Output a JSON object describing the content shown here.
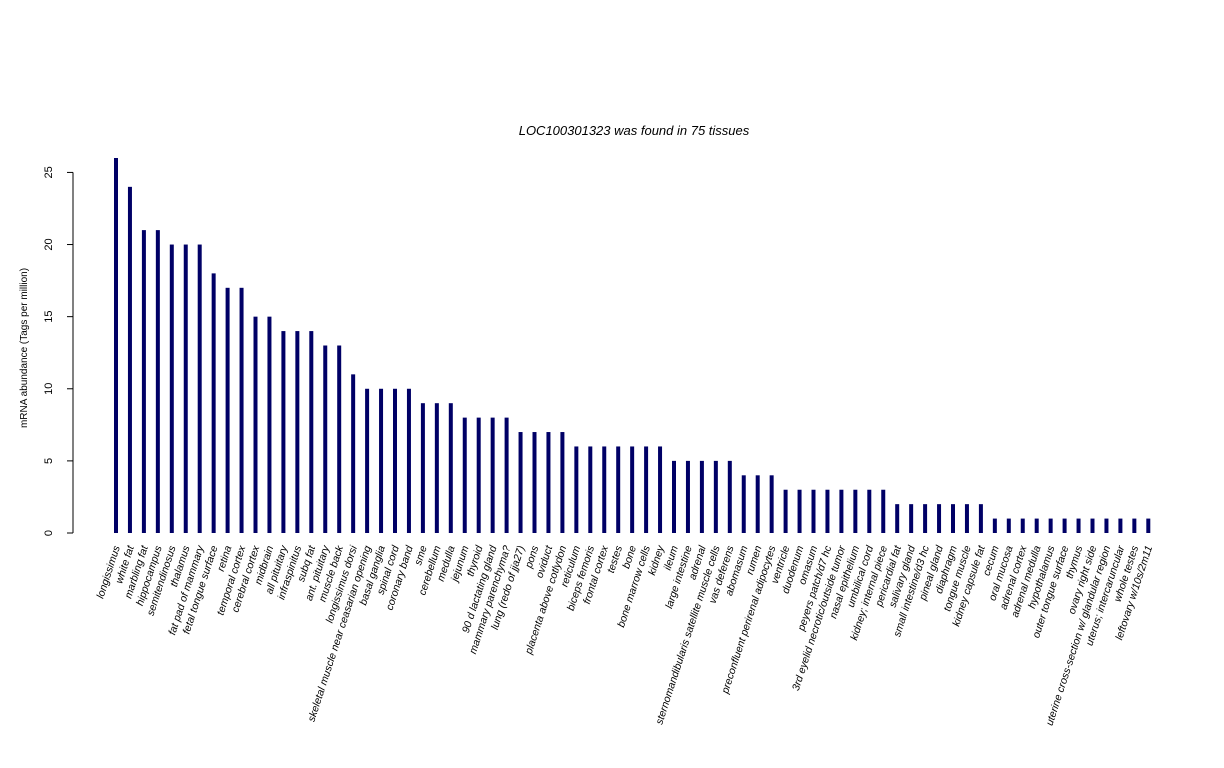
{
  "chart_data": {
    "type": "bar",
    "title": "LOC100301323  was found in  75  tissues",
    "ylabel": "mRNA abundance (Tags per million)",
    "xlabel": "",
    "ylim": [
      0,
      26
    ],
    "yticks": [
      0,
      5,
      10,
      15,
      20,
      25
    ],
    "bar_color": "#000066",
    "grid": false,
    "categories": [
      "longissimus",
      "white fat",
      "marbling fat",
      "hippocampus",
      "semitendinosus",
      "thalamus",
      "fat pad of mammary",
      "fetal tongue surface",
      "retina",
      "temporal cortex",
      "cerebral cortex",
      "midbrain",
      "all pituitary",
      "infraspinitus",
      "subq fat",
      "ant. pituitary",
      "muscle back",
      "longissimus dorsi",
      "skeletal muscle near ceasarian opening",
      "basal ganglia",
      "spinal cord",
      "coronary band",
      "sme",
      "cerebellum",
      "medulla",
      "jejunum",
      "thyroid",
      "90 d lactating gland",
      "mammary parenchyma?",
      "lung (redo of jja27)",
      "pons",
      "oviduct",
      "placenta above cotlydon",
      "reticulum",
      "biceps femoris",
      "frontal cortex",
      "testes",
      "bone",
      "bone marrow cells",
      "kidney",
      "ileum",
      "large intestine",
      "adrenal",
      "sternomandibularis satellite muscle cells",
      "vas deferens",
      "abomasum",
      "rumen",
      "preconfluent perirenal adipocytes",
      "ventricle",
      "duodenum",
      "omasum",
      "peyers patch/d7 hc",
      "3rd eyelid necrotic/outside tumor",
      "nasal epithelium",
      "umbilical cord",
      "kidney; internal piece",
      "pericardial fat",
      "salivary gland",
      "small intestine/d3 hc",
      "pineal gland",
      "diaphragm",
      "tongue muscle",
      "kidney capsule fat",
      "cecum",
      "oral mucosa",
      "adrenal cortex",
      "adrenal medulla",
      "hypothalamus",
      "outer tongue surface",
      "thymus",
      "ovary right side",
      "uterine cross-section w/ glandular region",
      "uterus; intercaruncular",
      "whole testes",
      "leftovary w/10s/2m11"
    ],
    "values": [
      26,
      24,
      21,
      21,
      20,
      20,
      20,
      18,
      17,
      17,
      15,
      15,
      14,
      14,
      14,
      13,
      13,
      11,
      10,
      10,
      10,
      10,
      9,
      9,
      9,
      8,
      8,
      8,
      8,
      7,
      7,
      7,
      7,
      6,
      6,
      6,
      6,
      6,
      6,
      6,
      5,
      5,
      5,
      5,
      5,
      4,
      4,
      4,
      3,
      3,
      3,
      3,
      3,
      3,
      3,
      3,
      2,
      2,
      2,
      2,
      2,
      2,
      2,
      1,
      1,
      1,
      1,
      1,
      1,
      1,
      1,
      1,
      1,
      1,
      1
    ]
  }
}
